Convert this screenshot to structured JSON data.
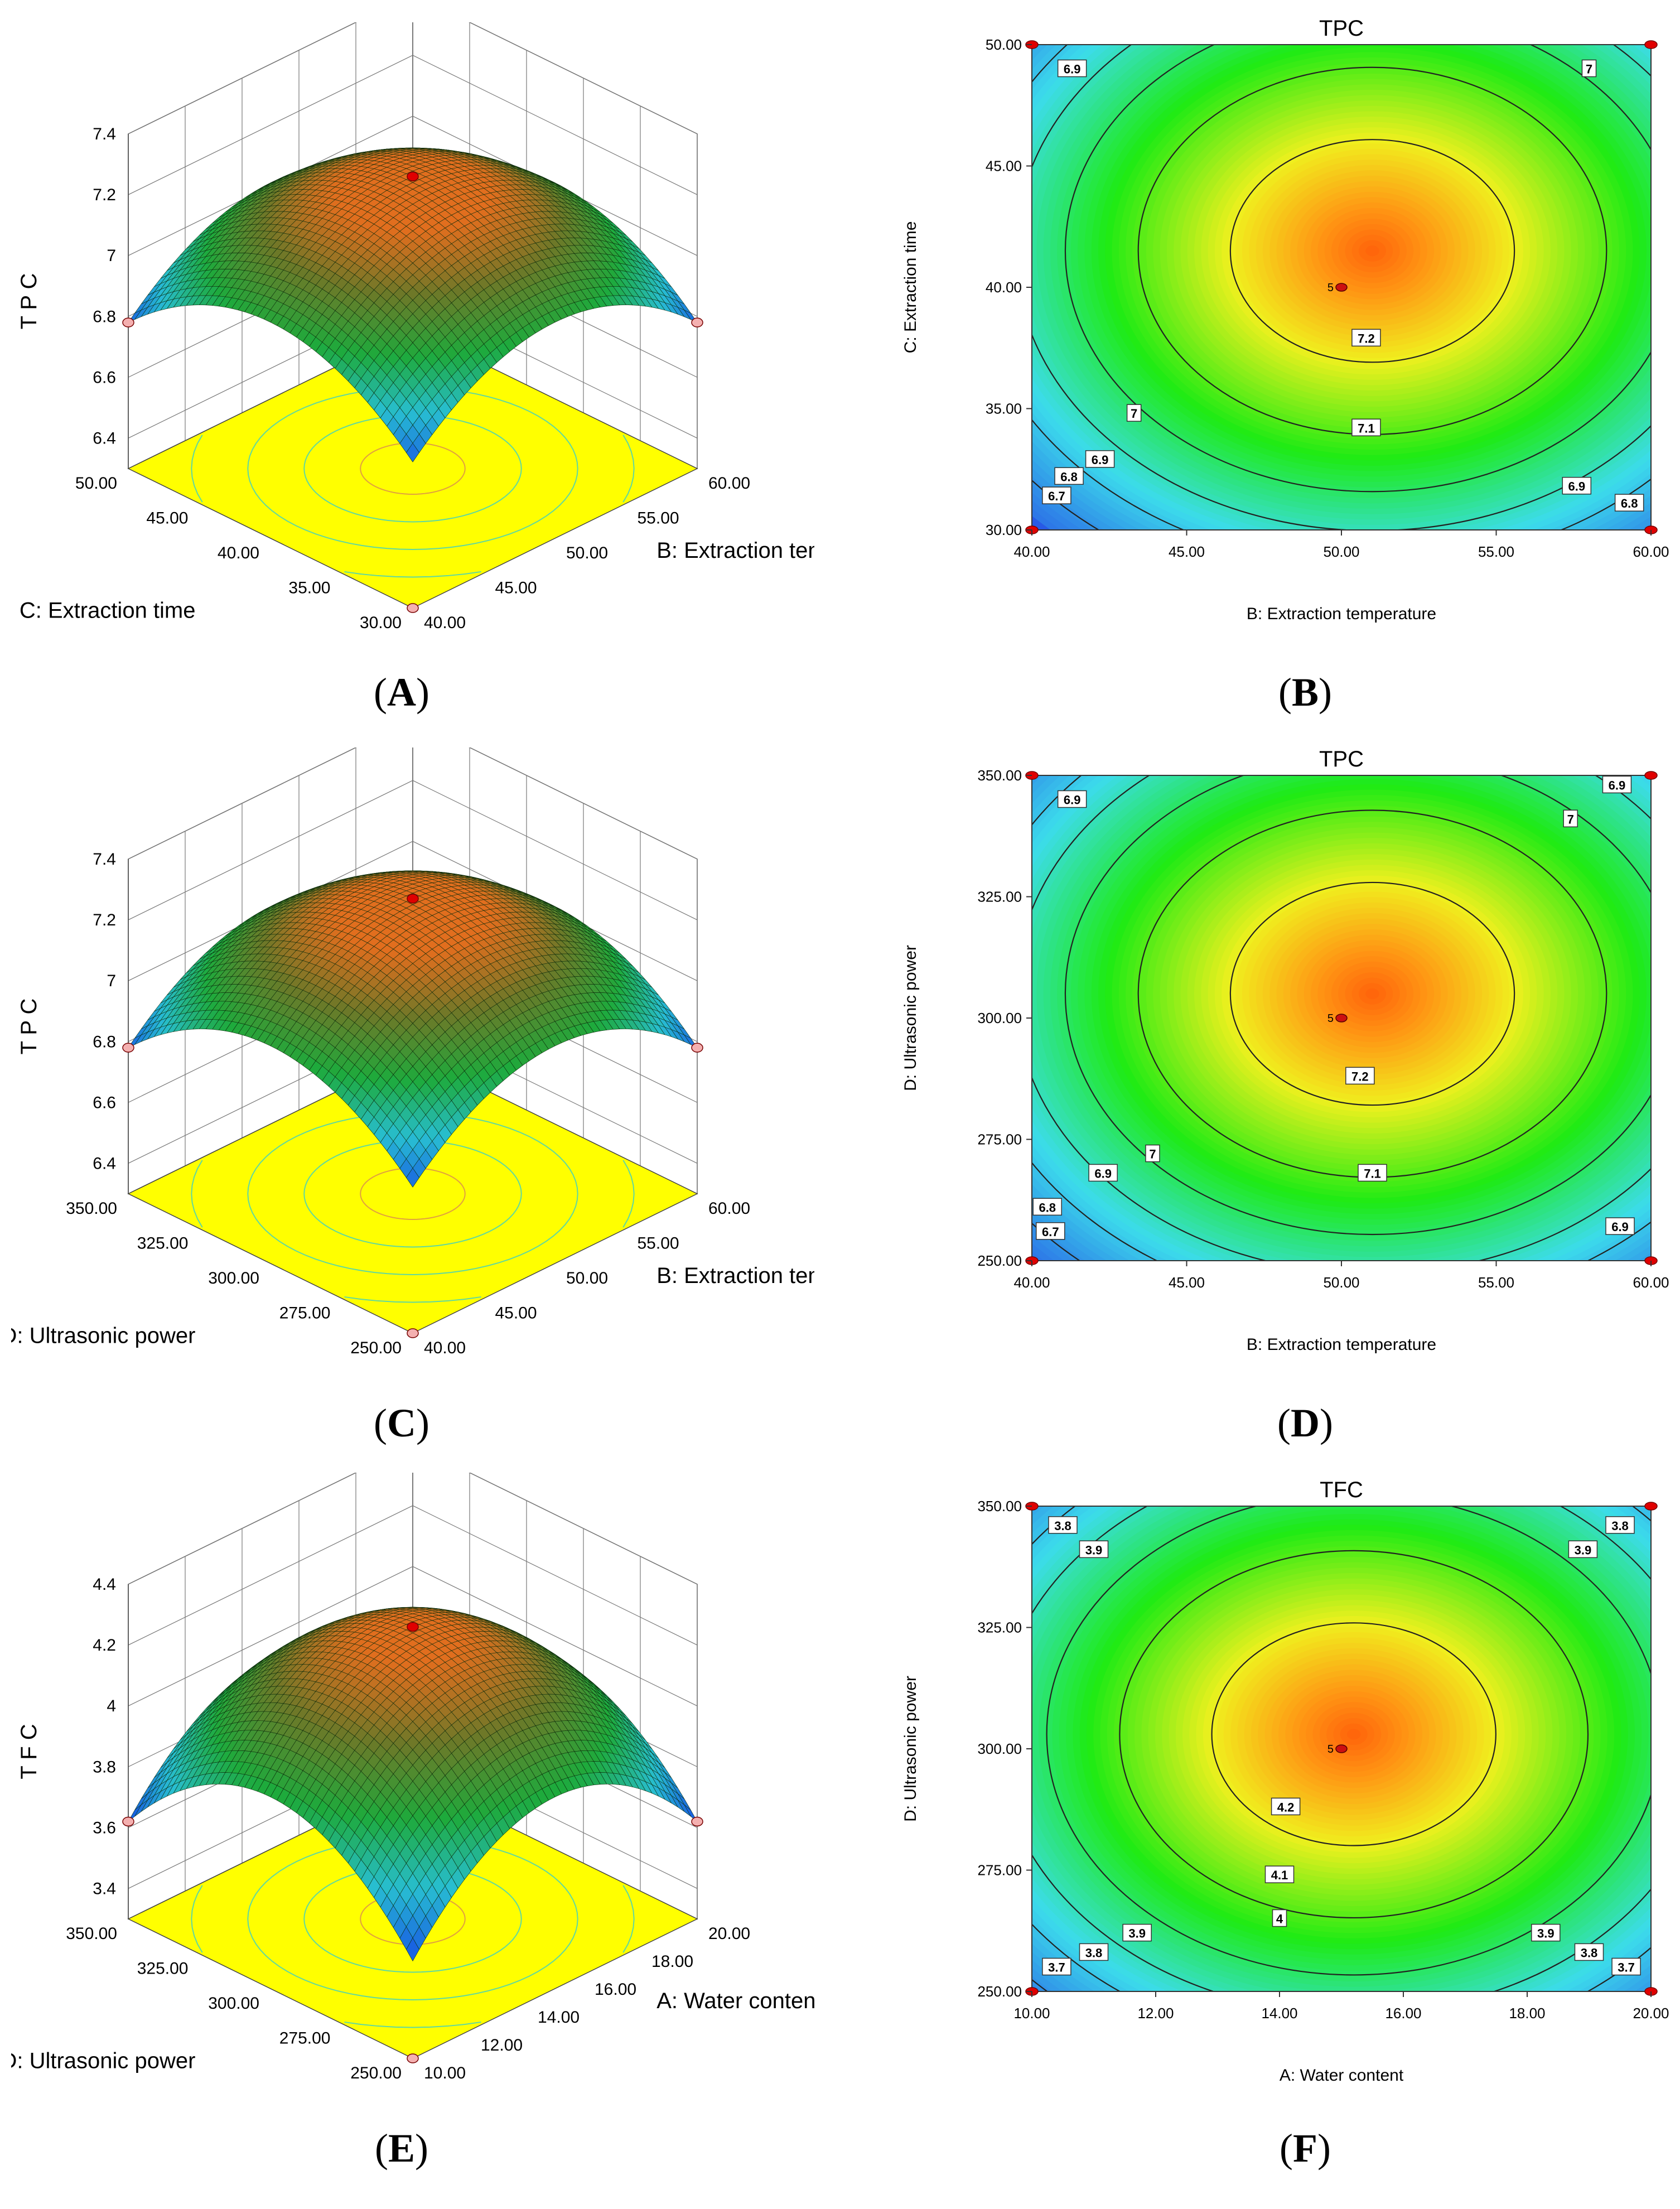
{
  "panels": [
    {
      "id": "A",
      "kind": "surface",
      "label_letter": "A",
      "chart_data": {
        "type": "surface",
        "title": "",
        "zlabel": "T P C",
        "xlabel": "B:  Extraction temperature",
        "ylabel": "C:  Extraction time",
        "x_ticks": [
          "40.00",
          "45.00",
          "50.00",
          "55.00",
          "60.00"
        ],
        "y_ticks": [
          "30.00",
          "35.00",
          "40.00",
          "45.00",
          "50.00"
        ],
        "z_ticks": [
          "6.4",
          "6.6",
          "6.8",
          "7",
          "7.2",
          "7.4"
        ],
        "xlim": [
          40,
          60
        ],
        "ylim": [
          30,
          50
        ],
        "zlim": [
          6.3,
          7.4
        ],
        "peak": 7.24,
        "corner_value": 6.78,
        "min_value": 6.3
      }
    },
    {
      "id": "B",
      "kind": "contour",
      "label_letter": "B",
      "chart_data": {
        "type": "contour",
        "title": "TPC",
        "xlabel": "B:  Extraction temperature",
        "ylabel": "C:  Extraction time",
        "x_ticks": [
          "40.00",
          "45.00",
          "50.00",
          "55.00",
          "60.00"
        ],
        "y_ticks": [
          "30.00",
          "35.00",
          "40.00",
          "45.00",
          "50.00"
        ],
        "xlim": [
          40,
          60
        ],
        "ylim": [
          30,
          50
        ],
        "center": [
          51,
          41.5
        ],
        "center_point": [
          50,
          40
        ],
        "center_point_label": "5",
        "contour_levels": [
          6.7,
          6.8,
          6.9,
          7,
          7.1,
          7.2
        ],
        "labels": [
          {
            "text": "6.9",
            "x": 41.3,
            "y": 49.0
          },
          {
            "text": "7",
            "x": 58.0,
            "y": 49.0
          },
          {
            "text": "7.2",
            "x": 50.8,
            "y": 37.9
          },
          {
            "text": "7.1",
            "x": 50.8,
            "y": 34.2
          },
          {
            "text": "7",
            "x": 43.3,
            "y": 34.8
          },
          {
            "text": "6.9",
            "x": 42.2,
            "y": 32.9
          },
          {
            "text": "6.8",
            "x": 41.2,
            "y": 32.2
          },
          {
            "text": "6.7",
            "x": 40.8,
            "y": 31.4
          },
          {
            "text": "6.9",
            "x": 57.6,
            "y": 31.8
          },
          {
            "text": "6.8",
            "x": 59.3,
            "y": 31.1
          }
        ]
      }
    },
    {
      "id": "C",
      "kind": "surface",
      "label_letter": "C",
      "chart_data": {
        "type": "surface",
        "title": "",
        "zlabel": "T P C",
        "xlabel": "B:  Extraction temperature",
        "ylabel": "D: Ultrasonic power",
        "x_ticks": [
          "40.00",
          "45.00",
          "50.00",
          "55.00",
          "60.00"
        ],
        "y_ticks": [
          "250.00",
          "275.00",
          "300.00",
          "325.00",
          "350.00"
        ],
        "z_ticks": [
          "6.4",
          "6.6",
          "6.8",
          "7",
          "7.2",
          "7.4"
        ],
        "xlim": [
          40,
          60
        ],
        "ylim": [
          250,
          350
        ],
        "zlim": [
          6.3,
          7.4
        ],
        "peak": 7.25,
        "corner_value": 6.78,
        "min_value": 6.3
      }
    },
    {
      "id": "D",
      "kind": "contour",
      "label_letter": "D",
      "chart_data": {
        "type": "contour",
        "title": "TPC",
        "xlabel": "B:  Extraction temperature",
        "ylabel": "D: Ultrasonic power",
        "x_ticks": [
          "40.00",
          "45.00",
          "50.00",
          "55.00",
          "60.00"
        ],
        "y_ticks": [
          "250.00",
          "275.00",
          "300.00",
          "325.00",
          "350.00"
        ],
        "xlim": [
          40,
          60
        ],
        "ylim": [
          250,
          350
        ],
        "center": [
          51,
          305
        ],
        "center_point": [
          50,
          300
        ],
        "center_point_label": "5",
        "contour_levels": [
          6.7,
          6.8,
          6.9,
          7,
          7.1,
          7.2
        ],
        "labels": [
          {
            "text": "6.9",
            "x": 41.3,
            "y": 345
          },
          {
            "text": "6.9",
            "x": 58.9,
            "y": 348
          },
          {
            "text": "7",
            "x": 57.4,
            "y": 341
          },
          {
            "text": "7.2",
            "x": 50.6,
            "y": 288
          },
          {
            "text": "7",
            "x": 43.9,
            "y": 272
          },
          {
            "text": "6.9",
            "x": 42.3,
            "y": 268
          },
          {
            "text": "7.1",
            "x": 51.0,
            "y": 268
          },
          {
            "text": "6.8",
            "x": 40.5,
            "y": 261
          },
          {
            "text": "6.7",
            "x": 40.6,
            "y": 256
          },
          {
            "text": "6.9",
            "x": 59.0,
            "y": 257
          }
        ]
      }
    },
    {
      "id": "E",
      "kind": "surface",
      "label_letter": "E",
      "chart_data": {
        "type": "surface",
        "title": "",
        "zlabel": "T F C",
        "xlabel": "A: Water content",
        "ylabel": "D: Ultrasonic power",
        "x_ticks": [
          "10.00",
          "12.00",
          "14.00",
          "16.00",
          "18.00",
          "20.00"
        ],
        "y_ticks": [
          "250.00",
          "275.00",
          "300.00",
          "325.00",
          "350.00"
        ],
        "z_ticks": [
          "3.4",
          "3.6",
          "3.8",
          "4",
          "4.2",
          "4.4"
        ],
        "xlim": [
          10,
          20
        ],
        "ylim": [
          250,
          350
        ],
        "zlim": [
          3.3,
          4.4
        ],
        "peak": 4.24,
        "corner_value": 3.62,
        "min_value": 3.3
      }
    },
    {
      "id": "F",
      "kind": "contour",
      "label_letter": "F",
      "chart_data": {
        "type": "contour",
        "title": "TFC",
        "xlabel": "A: Water content",
        "ylabel": "D: Ultrasonic power",
        "x_ticks": [
          "10.00",
          "12.00",
          "14.00",
          "16.00",
          "18.00",
          "20.00"
        ],
        "y_ticks": [
          "250.00",
          "275.00",
          "300.00",
          "325.00",
          "350.00"
        ],
        "xlim": [
          10,
          20
        ],
        "ylim": [
          250,
          350
        ],
        "center": [
          15.2,
          303
        ],
        "center_point": [
          15,
          300
        ],
        "center_point_label": "5",
        "contour_levels": [
          3.7,
          3.8,
          3.9,
          4,
          4.1,
          4.2
        ],
        "labels": [
          {
            "text": "3.8",
            "x": 10.5,
            "y": 346
          },
          {
            "text": "3.9",
            "x": 11.0,
            "y": 341
          },
          {
            "text": "3.8",
            "x": 19.5,
            "y": 346
          },
          {
            "text": "3.9",
            "x": 18.9,
            "y": 341
          },
          {
            "text": "4.2",
            "x": 14.1,
            "y": 288
          },
          {
            "text": "4.1",
            "x": 14.0,
            "y": 274
          },
          {
            "text": "4",
            "x": 14.0,
            "y": 265
          },
          {
            "text": "3.9",
            "x": 11.7,
            "y": 262
          },
          {
            "text": "3.8",
            "x": 11.0,
            "y": 258
          },
          {
            "text": "3.7",
            "x": 10.4,
            "y": 255
          },
          {
            "text": "3.9",
            "x": 18.3,
            "y": 262
          },
          {
            "text": "3.8",
            "x": 19.0,
            "y": 258
          },
          {
            "text": "3.7",
            "x": 19.6,
            "y": 255
          }
        ]
      }
    }
  ]
}
